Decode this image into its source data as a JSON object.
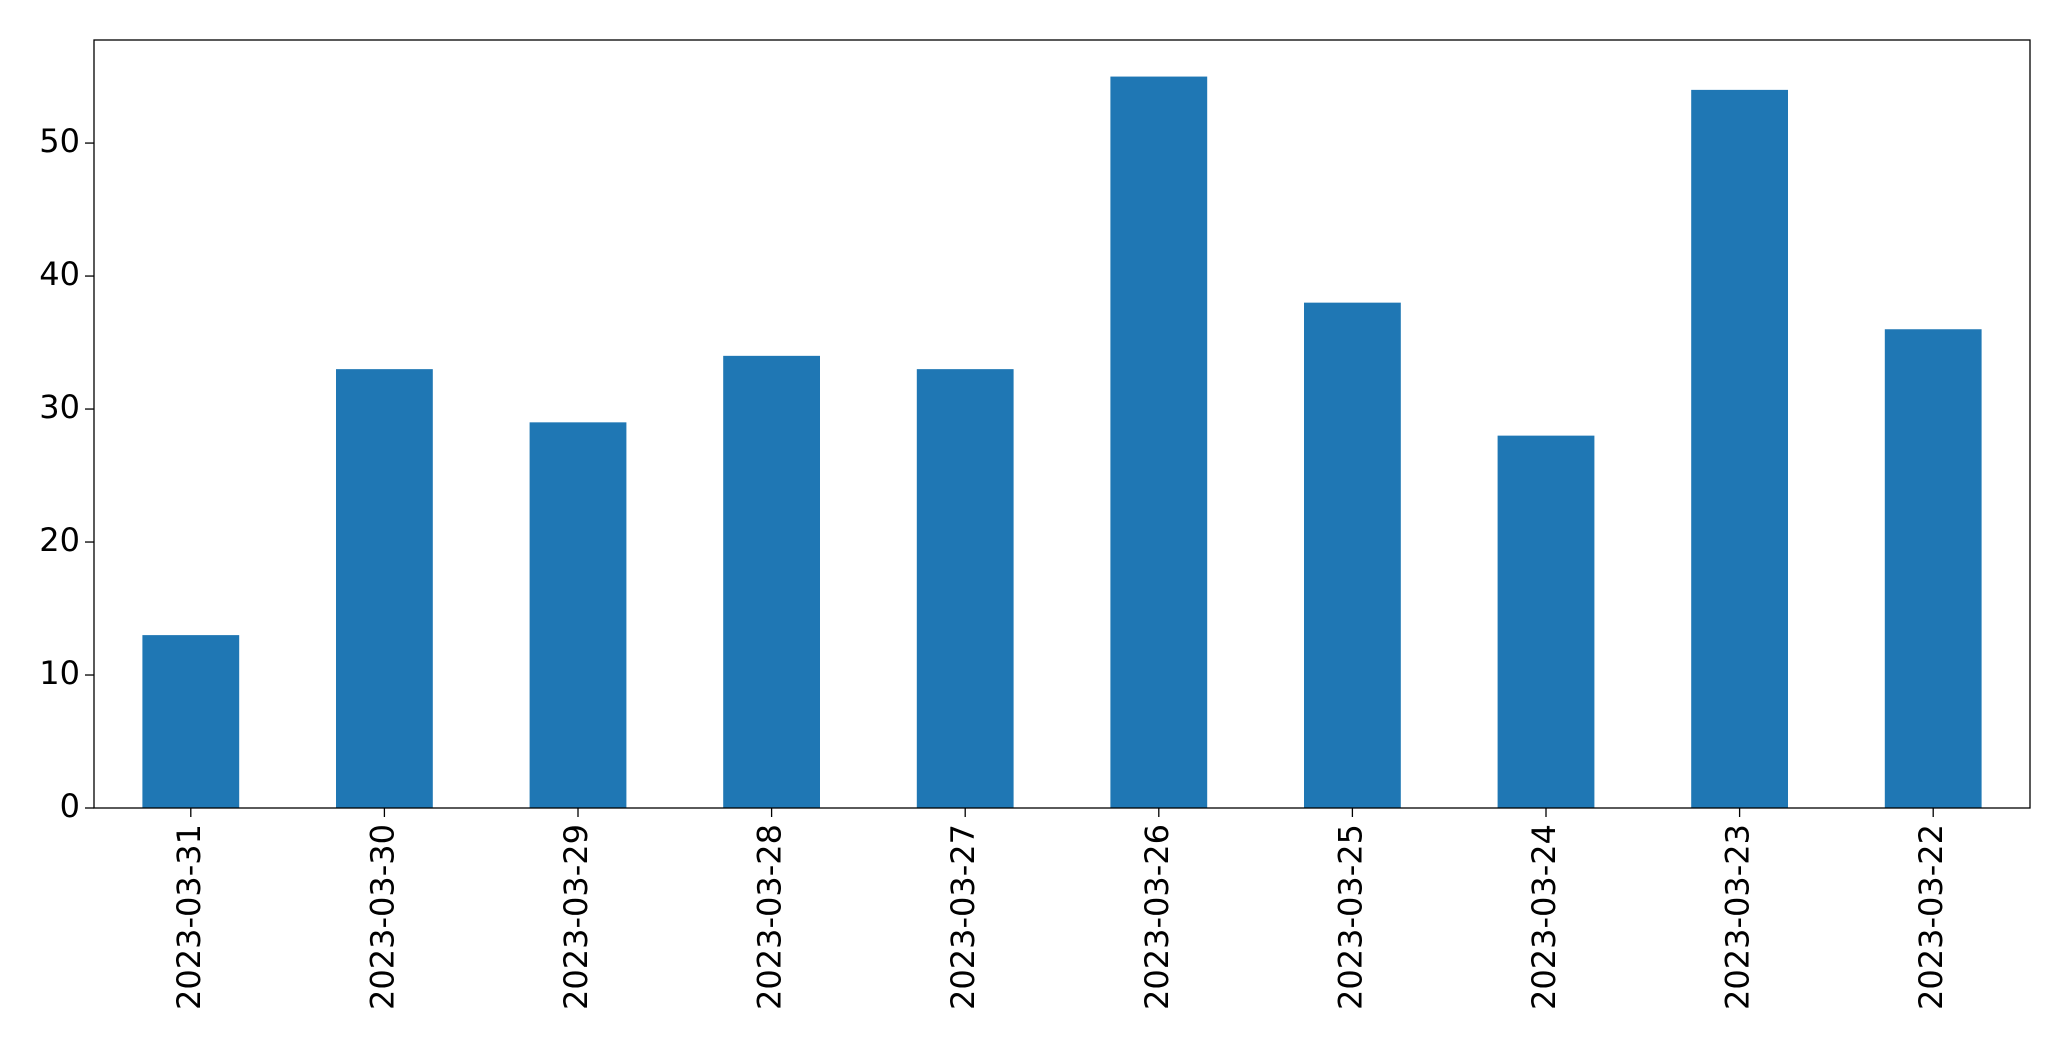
{
  "chart_data": {
    "type": "bar",
    "categories": [
      "2023-03-31",
      "2023-03-30",
      "2023-03-29",
      "2023-03-28",
      "2023-03-27",
      "2023-03-26",
      "2023-03-25",
      "2023-03-24",
      "2023-03-23",
      "2023-03-22"
    ],
    "values": [
      13,
      33,
      29,
      34,
      33,
      55,
      38,
      28,
      54,
      36
    ],
    "color": "#1f77b4",
    "ylim": [
      0,
      57.75
    ],
    "yticks": [
      0,
      10,
      20,
      30,
      40,
      50
    ],
    "grid": false
  }
}
